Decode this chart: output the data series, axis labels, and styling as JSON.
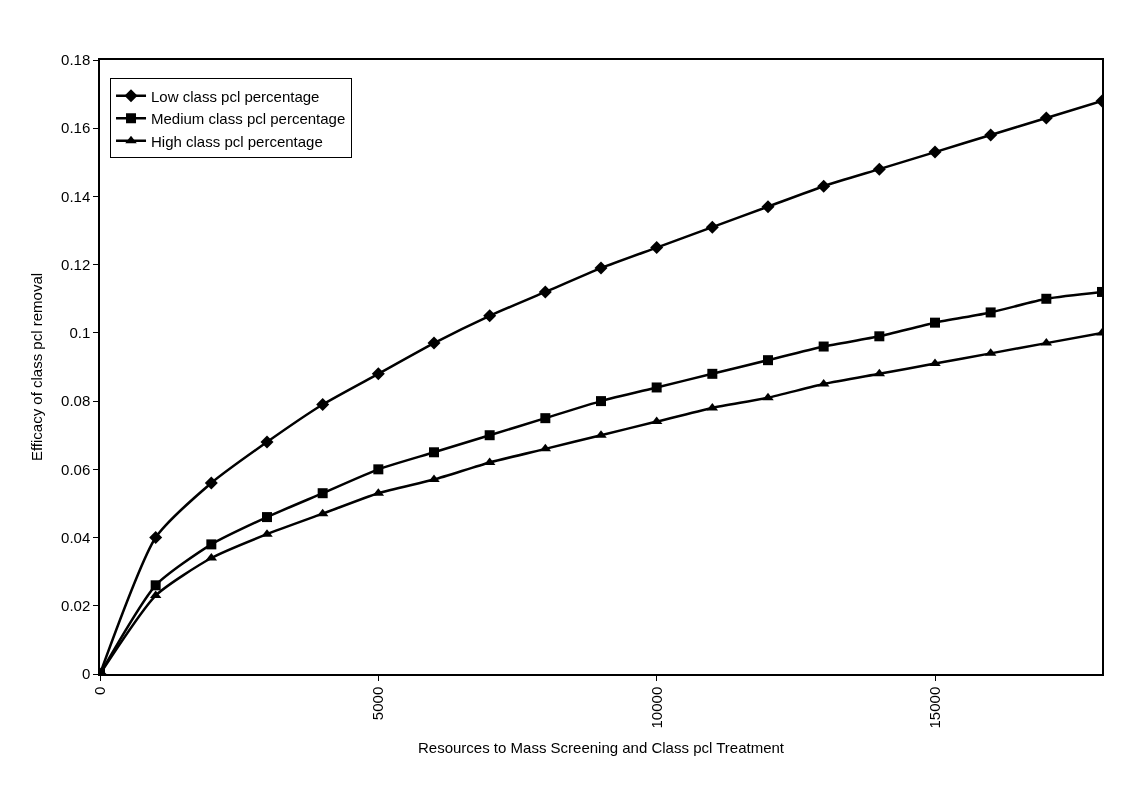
{
  "chart_data": {
    "type": "line",
    "xlabel": "Resources to Mass Screening and Class pcl Treatment",
    "ylabel": "Efficacy of class pcl removal",
    "x": [
      0,
      1000,
      2000,
      3000,
      4000,
      5000,
      6000,
      7000,
      8000,
      9000,
      10000,
      11000,
      12000,
      13000,
      14000,
      15000,
      16000,
      17000,
      18000
    ],
    "xlim": [
      0,
      18000
    ],
    "xticks": [
      0,
      5000,
      10000,
      15000
    ],
    "ylim": [
      0,
      0.18
    ],
    "yticks": [
      0,
      0.02,
      0.04,
      0.06,
      0.08,
      0.1,
      0.12,
      0.14,
      0.16,
      0.18
    ],
    "legend": "top left",
    "series": [
      {
        "name": "Low class pcl percentage",
        "color": "#000000",
        "marker": "diamond",
        "values": [
          0,
          0.04,
          0.056,
          0.068,
          0.079,
          0.088,
          0.097,
          0.105,
          0.112,
          0.119,
          0.125,
          0.131,
          0.137,
          0.143,
          0.148,
          0.153,
          0.158,
          0.163,
          0.168
        ]
      },
      {
        "name": "Medium class pcl percentage",
        "color": "#000000",
        "marker": "square",
        "values": [
          0,
          0.026,
          0.038,
          0.046,
          0.053,
          0.06,
          0.065,
          0.07,
          0.075,
          0.08,
          0.084,
          0.088,
          0.092,
          0.096,
          0.099,
          0.103,
          0.106,
          0.11,
          0.112
        ]
      },
      {
        "name": "High class pcl percentage",
        "color": "#000000",
        "marker": "triangle",
        "values": [
          0,
          0.023,
          0.034,
          0.041,
          0.047,
          0.053,
          0.057,
          0.062,
          0.066,
          0.07,
          0.074,
          0.078,
          0.081,
          0.085,
          0.088,
          0.091,
          0.094,
          0.097,
          0.1
        ]
      }
    ]
  }
}
